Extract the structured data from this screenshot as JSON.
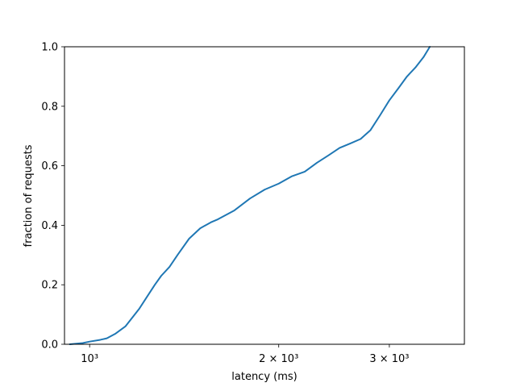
{
  "chart_data": {
    "type": "line",
    "title": "",
    "xlabel": "latency (ms)",
    "ylabel": "fraction of requests",
    "xscale": "log",
    "xlim": [
      912,
      3950
    ],
    "ylim": [
      0,
      1.0
    ],
    "grid": false,
    "x_ticks": [
      {
        "value": 1000,
        "label": "10³"
      },
      {
        "value": 2000,
        "label": "2 × 10³"
      },
      {
        "value": 3000,
        "label": "3 × 10³"
      }
    ],
    "y_ticks": [
      {
        "value": 0.0,
        "label": "0.0"
      },
      {
        "value": 0.2,
        "label": "0.2"
      },
      {
        "value": 0.4,
        "label": "0.4"
      },
      {
        "value": 0.6,
        "label": "0.6"
      },
      {
        "value": 0.8,
        "label": "0.8"
      },
      {
        "value": 1.0,
        "label": "1.0"
      }
    ],
    "series": [
      {
        "color": "#1f77b4",
        "x": [
          930,
          975,
          1000,
          1040,
          1065,
          1100,
          1140,
          1200,
          1230,
          1270,
          1300,
          1340,
          1380,
          1440,
          1500,
          1560,
          1600,
          1700,
          1800,
          1900,
          2000,
          2100,
          2200,
          2300,
          2400,
          2500,
          2600,
          2700,
          2800,
          2900,
          3000,
          3100,
          3200,
          3300,
          3400,
          3480
        ],
        "y": [
          0.0,
          0.004,
          0.009,
          0.015,
          0.02,
          0.036,
          0.06,
          0.12,
          0.155,
          0.2,
          0.23,
          0.26,
          0.3,
          0.355,
          0.39,
          0.41,
          0.42,
          0.45,
          0.49,
          0.52,
          0.54,
          0.565,
          0.58,
          0.61,
          0.635,
          0.66,
          0.675,
          0.69,
          0.72,
          0.77,
          0.82,
          0.86,
          0.9,
          0.93,
          0.965,
          1.0
        ]
      }
    ]
  }
}
